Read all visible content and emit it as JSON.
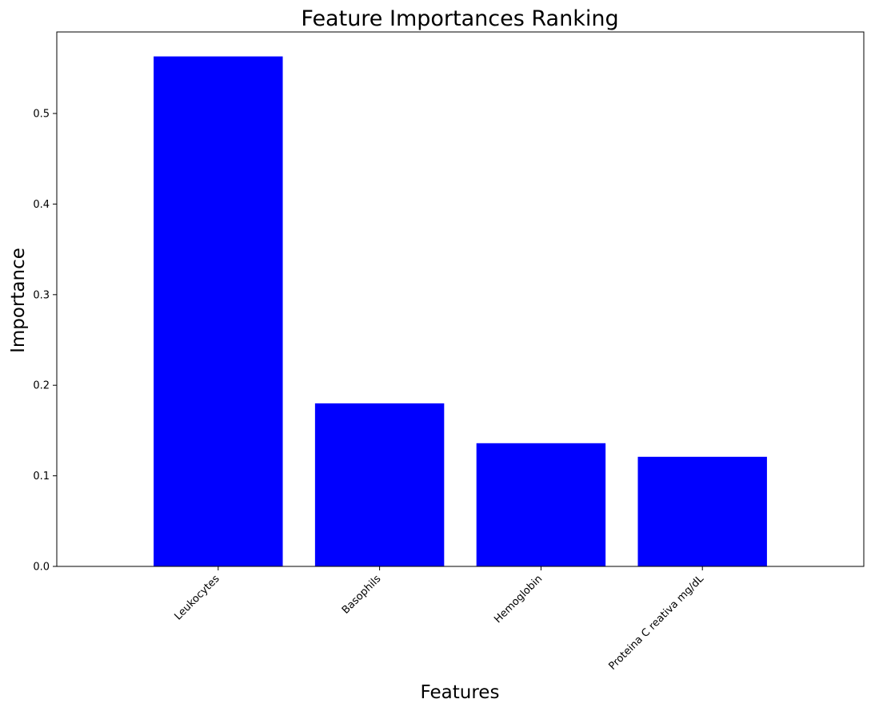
{
  "chart_data": {
    "type": "bar",
    "title": "Feature Importances Ranking",
    "xlabel": "Features",
    "ylabel": "Importance",
    "categories": [
      "Leukocytes",
      "Basophils",
      "Hemoglobin",
      "Proteina C reativa mg/dL"
    ],
    "values": [
      0.563,
      0.18,
      0.136,
      0.121
    ],
    "ylim": [
      0,
      0.59
    ],
    "yticks": [
      "0.0",
      "0.1",
      "0.2",
      "0.3",
      "0.4",
      "0.5"
    ],
    "bar_color": "#0000ff",
    "grid": false,
    "legend": "none"
  }
}
